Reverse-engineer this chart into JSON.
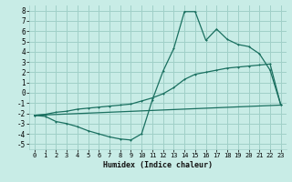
{
  "xlabel": "Humidex (Indice chaleur)",
  "xlim": [
    -0.5,
    23.5
  ],
  "ylim": [
    -5.5,
    8.5
  ],
  "xticks": [
    0,
    1,
    2,
    3,
    4,
    5,
    6,
    7,
    8,
    9,
    10,
    11,
    12,
    13,
    14,
    15,
    16,
    17,
    18,
    19,
    20,
    21,
    22,
    23
  ],
  "yticks": [
    -5,
    -4,
    -3,
    -2,
    -1,
    0,
    1,
    2,
    3,
    4,
    5,
    6,
    7,
    8
  ],
  "bg_color": "#c8ece6",
  "grid_color": "#a0d0c8",
  "line_color": "#1a7060",
  "line1_x": [
    0,
    1,
    2,
    3,
    4,
    5,
    6,
    7,
    8,
    9,
    10,
    11,
    12,
    13,
    14,
    15,
    16,
    17,
    18,
    19,
    20,
    21,
    22,
    23
  ],
  "line1_y": [
    -2.2,
    -2.3,
    -2.8,
    -3.0,
    -3.3,
    -3.7,
    -4.0,
    -4.3,
    -4.5,
    -4.6,
    -4.0,
    -0.7,
    2.1,
    4.3,
    7.9,
    7.9,
    5.1,
    6.2,
    5.2,
    4.7,
    4.5,
    3.8,
    2.2,
    -1.2
  ],
  "line2_x": [
    0,
    1,
    2,
    3,
    4,
    5,
    6,
    7,
    8,
    9,
    10,
    11,
    12,
    13,
    14,
    15,
    16,
    17,
    18,
    19,
    20,
    21,
    22,
    23
  ],
  "line2_y": [
    -2.2,
    -2.1,
    -1.9,
    -1.8,
    -1.6,
    -1.5,
    -1.4,
    -1.3,
    -1.2,
    -1.1,
    -0.8,
    -0.5,
    -0.1,
    0.5,
    1.3,
    1.8,
    2.0,
    2.2,
    2.4,
    2.5,
    2.6,
    2.7,
    2.8,
    -1.2
  ],
  "line3_x": [
    0,
    23
  ],
  "line3_y": [
    -2.2,
    -1.2
  ]
}
